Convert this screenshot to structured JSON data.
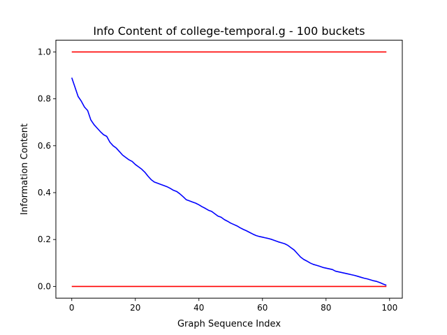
{
  "chart_data": {
    "type": "line",
    "title": "Info Content of college-temporal.g - 100 buckets",
    "xlabel": "Graph Sequence Index",
    "ylabel": "Information Content",
    "xlim": [
      -5,
      104
    ],
    "ylim": [
      -0.05,
      1.05
    ],
    "xticks": [
      0,
      20,
      40,
      60,
      80,
      100
    ],
    "yticks": [
      0.0,
      0.2,
      0.4,
      0.6,
      0.8,
      1.0
    ],
    "xtick_labels": [
      "0",
      "20",
      "40",
      "60",
      "80",
      "100"
    ],
    "ytick_labels": [
      "0.0",
      "0.2",
      "0.4",
      "0.6",
      "0.8",
      "1.0"
    ],
    "grid": false,
    "series": [
      {
        "color": "#0000ff",
        "x": [
          0,
          1,
          2,
          3,
          4,
          5,
          6,
          7,
          8,
          9,
          10,
          11,
          12,
          13,
          14,
          15,
          16,
          17,
          18,
          19,
          20,
          21,
          22,
          23,
          24,
          25,
          26,
          27,
          28,
          29,
          30,
          31,
          32,
          33,
          34,
          35,
          36,
          37,
          38,
          39,
          40,
          41,
          42,
          43,
          44,
          45,
          46,
          47,
          48,
          49,
          50,
          51,
          52,
          53,
          54,
          55,
          56,
          57,
          58,
          59,
          60,
          61,
          62,
          63,
          64,
          65,
          66,
          67,
          68,
          69,
          70,
          71,
          72,
          73,
          74,
          75,
          76,
          77,
          78,
          79,
          80,
          81,
          82,
          83,
          84,
          85,
          86,
          87,
          88,
          89,
          90,
          91,
          92,
          93,
          94,
          95,
          96,
          97,
          98,
          99
        ],
        "y": [
          0.89,
          0.85,
          0.81,
          0.79,
          0.765,
          0.75,
          0.71,
          0.69,
          0.675,
          0.66,
          0.647,
          0.64,
          0.615,
          0.6,
          0.59,
          0.575,
          0.56,
          0.55,
          0.54,
          0.533,
          0.52,
          0.51,
          0.5,
          0.487,
          0.47,
          0.455,
          0.445,
          0.44,
          0.435,
          0.43,
          0.425,
          0.418,
          0.41,
          0.405,
          0.395,
          0.383,
          0.37,
          0.365,
          0.36,
          0.355,
          0.348,
          0.34,
          0.333,
          0.325,
          0.32,
          0.31,
          0.3,
          0.295,
          0.285,
          0.278,
          0.27,
          0.264,
          0.258,
          0.25,
          0.243,
          0.237,
          0.23,
          0.223,
          0.217,
          0.213,
          0.21,
          0.207,
          0.204,
          0.2,
          0.195,
          0.19,
          0.186,
          0.182,
          0.175,
          0.165,
          0.155,
          0.14,
          0.125,
          0.115,
          0.108,
          0.1,
          0.094,
          0.09,
          0.086,
          0.081,
          0.078,
          0.075,
          0.072,
          0.065,
          0.062,
          0.059,
          0.056,
          0.053,
          0.05,
          0.047,
          0.043,
          0.039,
          0.035,
          0.032,
          0.028,
          0.024,
          0.021,
          0.016,
          0.01,
          0.005
        ]
      },
      {
        "color": "#ff0000",
        "x": [
          0,
          99
        ],
        "y": [
          1.0,
          1.0
        ]
      },
      {
        "color": "#ff0000",
        "x": [
          0,
          99
        ],
        "y": [
          0.0,
          0.0
        ]
      }
    ]
  }
}
